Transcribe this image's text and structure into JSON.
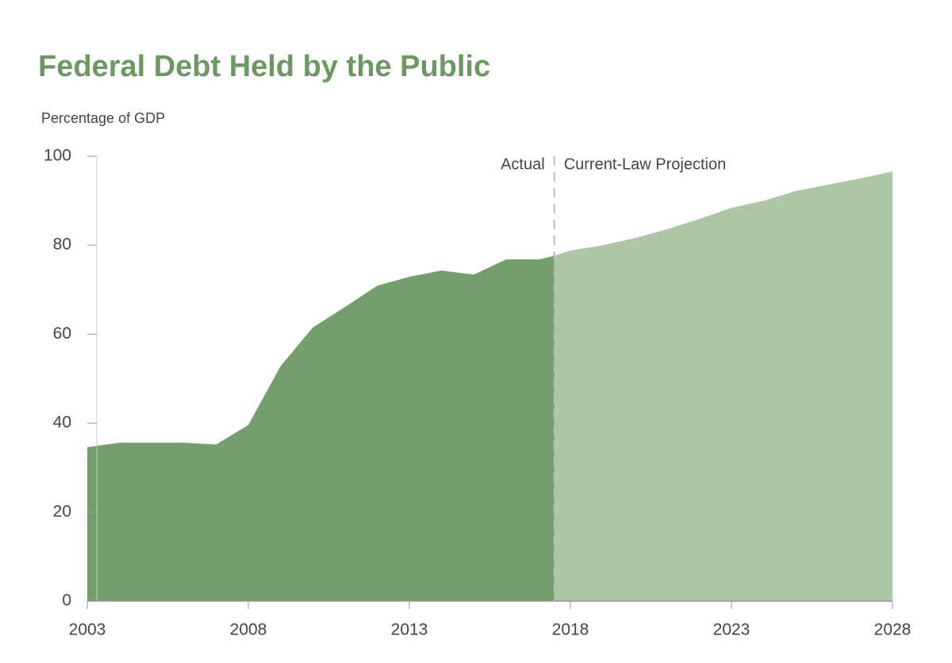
{
  "chart_data": {
    "type": "area",
    "title": "Federal Debt Held by the Public",
    "y_label": "Percentage of GDP",
    "xlim": [
      2003,
      2028
    ],
    "xticks": [
      2003,
      2008,
      2013,
      2018,
      2023,
      2028
    ],
    "ylim": [
      0,
      100
    ],
    "yticks": [
      0,
      20,
      40,
      60,
      80,
      100
    ],
    "divider_x": 2017.5,
    "series": [
      {
        "name": "Actual",
        "color": "#759e6d",
        "x": [
          2003,
          2004,
          2005,
          2006,
          2007,
          2008,
          2009,
          2010,
          2011,
          2012,
          2013,
          2014,
          2015,
          2016,
          2017,
          2017.5
        ],
        "values": [
          34.6,
          35.6,
          35.6,
          35.6,
          35.2,
          39.6,
          52.8,
          61.5,
          66.1,
          70.9,
          72.9,
          74.3,
          73.4,
          76.8,
          76.8,
          77.6
        ]
      },
      {
        "name": "Current-Law Projection",
        "color": "#abc7a6",
        "x": [
          2017.5,
          2018,
          2019,
          2020,
          2021,
          2022,
          2023,
          2024,
          2025,
          2026,
          2027,
          2028
        ],
        "values": [
          77.6,
          78.8,
          80.0,
          81.6,
          83.6,
          85.9,
          88.4,
          90.0,
          92.2,
          93.6,
          95.0,
          96.6
        ]
      }
    ]
  }
}
